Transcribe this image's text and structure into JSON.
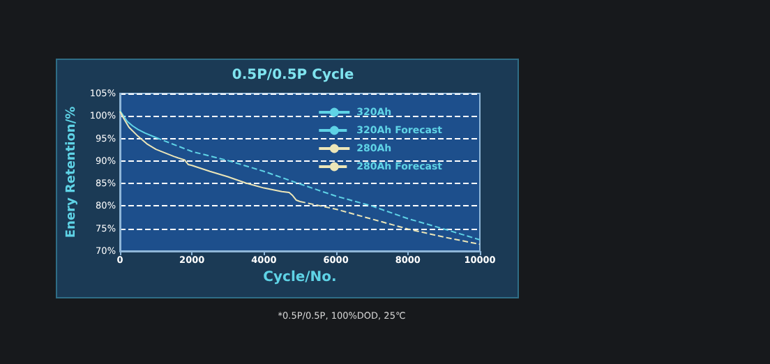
{
  "chart_data": {
    "type": "line",
    "title": "0.5P/0.5P Cycle",
    "xlabel": "Cycle/No.",
    "ylabel": "Enery Retention/%",
    "annotations": [
      "*0.5P/0.5P, 100%DOD, 25℃"
    ],
    "series": [
      {
        "name": "320Ah",
        "color": "#5fd3e6",
        "line_style": "solid",
        "x": [
          0,
          100,
          200,
          350,
          500,
          700,
          1000
        ],
        "values": [
          101.2,
          100,
          98.8,
          97.8,
          97,
          96.2,
          95.2
        ]
      },
      {
        "name": "320Ah Forecast",
        "color": "#5fd3e6",
        "line_style": "dashed",
        "x": [
          1000,
          2000,
          3000,
          4000,
          5000,
          6000,
          7000,
          8000,
          9000,
          10000
        ],
        "values": [
          95.2,
          92.1,
          90.1,
          87.7,
          84.9,
          82.2,
          80,
          77.2,
          74.9,
          72.5
        ]
      },
      {
        "name": "280Ah",
        "color": "#ece6b8",
        "line_style": "solid",
        "x": [
          0,
          100,
          250,
          500,
          750,
          1000,
          1500,
          1800,
          1900,
          2000,
          2500,
          3000,
          3500,
          4000,
          4500,
          4700,
          4800,
          4900,
          5000
        ],
        "values": [
          101,
          99.5,
          97.5,
          95.5,
          93.8,
          92.6,
          91,
          90.2,
          89.2,
          89,
          87.7,
          86.5,
          85.1,
          84,
          83.2,
          83,
          82.3,
          81.3,
          81
        ]
      },
      {
        "name": "280Ah Forecast",
        "color": "#ece6b8",
        "line_style": "dashed",
        "x": [
          5000,
          6000,
          7000,
          8000,
          9000,
          10000
        ],
        "values": [
          81,
          79.3,
          77.1,
          74.9,
          73.1,
          71.5
        ]
      }
    ],
    "xlim": [
      0,
      10000
    ],
    "xticks": [
      0,
      2000,
      4000,
      6000,
      8000,
      10000
    ],
    "ylim": [
      70,
      105
    ],
    "yticks": [
      {
        "value": 70,
        "label": "70%"
      },
      {
        "value": 75,
        "label": "75%"
      },
      {
        "value": 80,
        "label": "80%"
      },
      {
        "value": 85,
        "label": "85%"
      },
      {
        "value": 90,
        "label": "90%"
      },
      {
        "value": 95,
        "label": "95%"
      },
      {
        "value": 100,
        "label": "100%"
      },
      {
        "value": 105,
        "label": "105%"
      }
    ],
    "grid": "y",
    "legend": "top right",
    "marker": "none"
  }
}
